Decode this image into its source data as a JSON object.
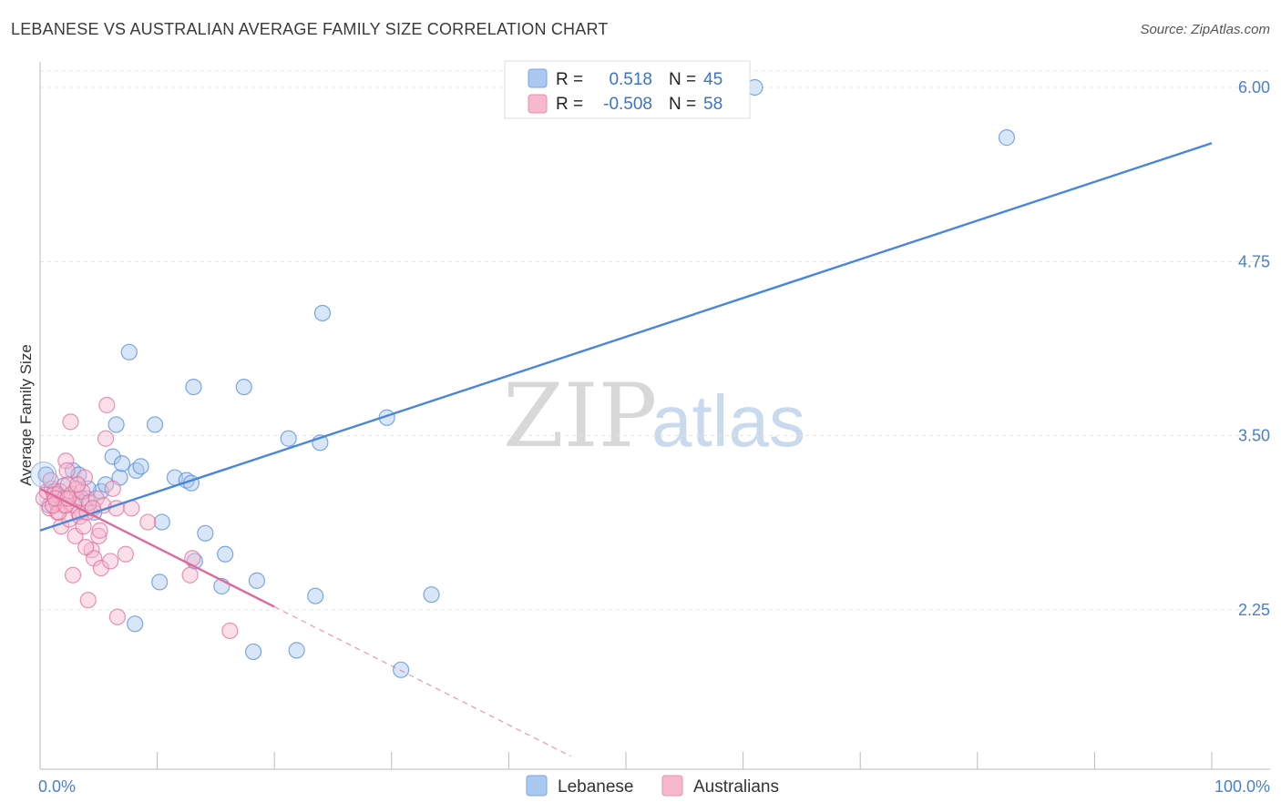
{
  "header": {
    "title": "LEBANESE VS AUSTRALIAN AVERAGE FAMILY SIZE CORRELATION CHART",
    "source": "Source: ZipAtlas.com"
  },
  "watermark": {
    "zip": "ZIP",
    "atlas": "atlas"
  },
  "legend": {
    "rows": [
      {
        "r_label": "R =",
        "r_value": "0.518",
        "n_label": "N =",
        "n_value": "45",
        "color": "#aac8f0"
      },
      {
        "r_label": "R =",
        "r_value": "-0.508",
        "n_label": "N =",
        "n_value": "58",
        "color": "#f5b8cc"
      }
    ]
  },
  "bottom_legend": [
    {
      "label": "Lebanese",
      "color": "#aac8f0"
    },
    {
      "label": "Australians",
      "color": "#f5b8cc"
    }
  ],
  "chart_data": {
    "type": "scatter",
    "ylabel": "Average Family Size",
    "xlim": [
      0,
      100
    ],
    "ylim": [
      1.2,
      6.15
    ],
    "x_tick_labels": {
      "left": "0.0%",
      "right": "100.0%"
    },
    "y_ticks": [
      {
        "value": 2.25,
        "label": "2.25"
      },
      {
        "value": 3.5,
        "label": "3.50"
      },
      {
        "value": 4.75,
        "label": "4.75"
      },
      {
        "value": 6.0,
        "label": "6.00"
      }
    ],
    "grid": true,
    "series": [
      {
        "name": "Lebanese",
        "color": "#4a86d8",
        "fill": "#aac8f0",
        "trend": {
          "x0": 0,
          "y0": 2.82,
          "x1": 100,
          "y1": 5.6,
          "solid_to": 100
        },
        "points": [
          [
            0.5,
            3.22
          ],
          [
            1.2,
            3.1
          ],
          [
            2.8,
            3.25
          ],
          [
            3.3,
            3.22
          ],
          [
            3.1,
            3.05
          ],
          [
            4.0,
            3.05
          ],
          [
            4.6,
            2.95
          ],
          [
            5.2,
            3.1
          ],
          [
            5.6,
            3.15
          ],
          [
            6.2,
            3.35
          ],
          [
            6.5,
            3.58
          ],
          [
            6.8,
            3.2
          ],
          [
            7.0,
            3.3
          ],
          [
            7.6,
            4.1
          ],
          [
            8.2,
            3.25
          ],
          [
            8.6,
            3.28
          ],
          [
            9.8,
            3.58
          ],
          [
            10.4,
            2.88
          ],
          [
            11.5,
            3.2
          ],
          [
            12.5,
            3.18
          ],
          [
            12.9,
            3.16
          ],
          [
            13.2,
            2.6
          ],
          [
            10.2,
            2.45
          ],
          [
            13.1,
            3.85
          ],
          [
            14.1,
            2.8
          ],
          [
            15.5,
            2.42
          ],
          [
            15.8,
            2.65
          ],
          [
            17.4,
            3.85
          ],
          [
            18.2,
            1.95
          ],
          [
            18.5,
            2.46
          ],
          [
            21.2,
            3.48
          ],
          [
            21.9,
            1.96
          ],
          [
            23.9,
            3.45
          ],
          [
            24.1,
            4.38
          ],
          [
            23.5,
            2.35
          ],
          [
            29.6,
            3.63
          ],
          [
            30.8,
            1.82
          ],
          [
            33.4,
            2.36
          ],
          [
            61.0,
            6.0
          ],
          [
            82.5,
            5.64
          ],
          [
            8.1,
            2.15
          ],
          [
            4.1,
            3.12
          ],
          [
            2.0,
            3.14
          ],
          [
            1.5,
            3.08
          ],
          [
            0.8,
            3.0
          ]
        ]
      },
      {
        "name": "Australians",
        "color": "#e0689a",
        "fill": "#f5b8cc",
        "trend": {
          "x0": 0,
          "y0": 3.12,
          "x1": 45.3,
          "y1": 1.2,
          "solid_to": 20
        },
        "points": [
          [
            0.3,
            3.05
          ],
          [
            0.6,
            3.1
          ],
          [
            0.8,
            2.98
          ],
          [
            1.0,
            3.12
          ],
          [
            1.2,
            3.08
          ],
          [
            1.4,
            3.02
          ],
          [
            1.5,
            2.95
          ],
          [
            1.7,
            3.1
          ],
          [
            1.8,
            2.85
          ],
          [
            2.0,
            3.0
          ],
          [
            2.1,
            3.05
          ],
          [
            2.2,
            3.32
          ],
          [
            2.3,
            3.25
          ],
          [
            2.4,
            3.15
          ],
          [
            2.5,
            2.9
          ],
          [
            2.7,
            3.08
          ],
          [
            2.9,
            3.0
          ],
          [
            3.0,
            2.78
          ],
          [
            3.1,
            3.12
          ],
          [
            3.3,
            2.95
          ],
          [
            3.4,
            2.92
          ],
          [
            3.5,
            3.05
          ],
          [
            3.6,
            3.1
          ],
          [
            3.7,
            2.85
          ],
          [
            3.8,
            3.2
          ],
          [
            4.0,
            2.95
          ],
          [
            4.2,
            3.02
          ],
          [
            4.4,
            2.68
          ],
          [
            4.6,
            2.62
          ],
          [
            4.8,
            3.05
          ],
          [
            5.0,
            2.78
          ],
          [
            5.2,
            2.55
          ],
          [
            5.4,
            3.0
          ],
          [
            5.6,
            3.48
          ],
          [
            5.7,
            3.72
          ],
          [
            6.0,
            2.6
          ],
          [
            6.2,
            3.12
          ],
          [
            6.5,
            2.98
          ],
          [
            6.6,
            2.2
          ],
          [
            7.3,
            2.65
          ],
          [
            7.8,
            2.98
          ],
          [
            9.2,
            2.88
          ],
          [
            12.8,
            2.5
          ],
          [
            13.0,
            2.62
          ],
          [
            16.2,
            2.1
          ],
          [
            2.6,
            3.6
          ],
          [
            2.8,
            2.5
          ],
          [
            4.1,
            2.32
          ],
          [
            1.6,
            2.95
          ],
          [
            0.9,
            3.18
          ],
          [
            1.1,
            3.0
          ],
          [
            1.3,
            3.05
          ],
          [
            2.2,
            3.0
          ],
          [
            3.2,
            3.15
          ],
          [
            4.5,
            2.98
          ],
          [
            5.1,
            2.82
          ],
          [
            3.9,
            2.7
          ],
          [
            2.4,
            3.05
          ]
        ]
      }
    ]
  }
}
